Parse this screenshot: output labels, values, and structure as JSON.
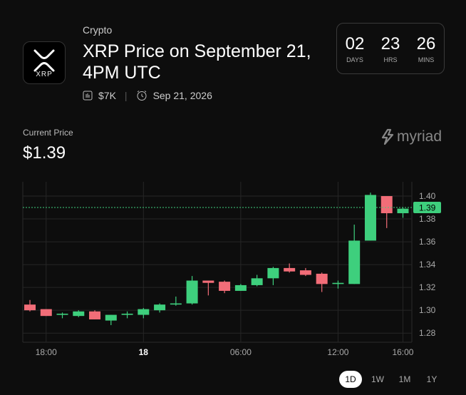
{
  "header": {
    "category": "Crypto",
    "title_lines": [
      "XRP Price on September 21,",
      "4PM UTC"
    ],
    "logo_text": "XRP",
    "volume": "$7K",
    "date": "Sep 21, 2026"
  },
  "countdown": [
    {
      "value": "02",
      "unit": "DAYS"
    },
    {
      "value": "23",
      "unit": "HRS"
    },
    {
      "value": "26",
      "unit": "MINS"
    }
  ],
  "current_price": {
    "label": "Current Price",
    "value": "$1.39"
  },
  "brand": "myriad",
  "range_buttons": [
    "1D",
    "1W",
    "1M",
    "1Y"
  ],
  "selected_range": "1D",
  "chart_data": {
    "type": "candlestick",
    "categories": [
      null,
      "18:00",
      null,
      null,
      null,
      null,
      null,
      "18",
      null,
      null,
      null,
      null,
      null,
      "06:00",
      null,
      null,
      null,
      null,
      null,
      "12:00",
      null,
      null,
      null,
      "16:00"
    ],
    "open": [
      1.305,
      1.301,
      1.296,
      1.295,
      1.299,
      1.291,
      1.296,
      1.296,
      1.3,
      1.305,
      1.306,
      1.326,
      1.325,
      1.317,
      1.322,
      1.328,
      1.337,
      1.335,
      1.332,
      1.323,
      1.323,
      1.361,
      1.4,
      1.385
    ],
    "high": [
      1.309,
      1.301,
      1.298,
      1.3,
      1.3,
      1.296,
      1.299,
      1.302,
      1.306,
      1.312,
      1.33,
      1.326,
      1.326,
      1.323,
      1.331,
      1.338,
      1.341,
      1.337,
      1.333,
      1.326,
      1.375,
      1.403,
      1.4,
      1.39
    ],
    "low": [
      1.299,
      1.295,
      1.293,
      1.294,
      1.292,
      1.287,
      1.293,
      1.293,
      1.298,
      1.304,
      1.305,
      1.313,
      1.315,
      1.317,
      1.321,
      1.322,
      1.333,
      1.33,
      1.316,
      1.319,
      1.323,
      1.361,
      1.372,
      1.381
    ],
    "close": [
      1.3,
      1.295,
      1.297,
      1.299,
      1.292,
      1.296,
      1.297,
      1.301,
      1.305,
      1.306,
      1.326,
      1.324,
      1.317,
      1.322,
      1.328,
      1.337,
      1.334,
      1.331,
      1.323,
      1.324,
      1.361,
      1.401,
      1.385,
      1.389
    ],
    "up_color": "#3ecf7d",
    "down_color": "#f26d78",
    "last_price": 1.39,
    "ylim": [
      1.272,
      1.4125
    ],
    "yticks": [
      1.28,
      {
        "value": 1.3,
        "label": "1.30"
      },
      1.32,
      1.34,
      1.36,
      1.38,
      {
        "value": 1.4,
        "label": "1.40"
      }
    ],
    "grid": true
  }
}
